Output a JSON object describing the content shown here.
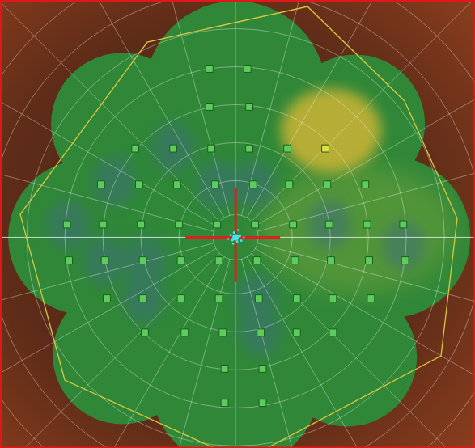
{
  "chart_data": {
    "type": "scatter",
    "marker": "square",
    "tick_labels": false,
    "xlim": [
      -12.4,
      12.6
    ],
    "ylim": [
      -11.1,
      12.5
    ],
    "x": [
      -1.4,
      0.6,
      -1.4,
      0.7,
      -5.3,
      -3.3,
      -1.3,
      0.7,
      2.7,
      4.7,
      -7.1,
      -5.1,
      -3.1,
      -1.1,
      0.9,
      2.8,
      4.8,
      6.8,
      -8.9,
      -7.0,
      -5.0,
      -3.0,
      -1.0,
      1.0,
      3.0,
      4.9,
      6.9,
      8.8,
      -8.8,
      -6.9,
      -4.9,
      -2.9,
      -0.9,
      1.1,
      3.1,
      5.0,
      7.0,
      8.9,
      -6.8,
      -4.9,
      -2.9,
      -0.9,
      1.2,
      3.2,
      5.1,
      7.1,
      -4.8,
      -2.7,
      -0.7,
      1.3,
      3.2,
      5.1,
      -0.6,
      1.4,
      -0.6,
      1.4
    ],
    "y": [
      8.9,
      8.9,
      6.9,
      6.9,
      4.7,
      4.7,
      4.7,
      4.7,
      4.7,
      4.7,
      2.8,
      2.8,
      2.8,
      2.8,
      2.8,
      2.8,
      2.8,
      2.8,
      0.7,
      0.7,
      0.7,
      0.7,
      0.7,
      0.7,
      0.7,
      0.7,
      0.7,
      0.7,
      -1.2,
      -1.2,
      -1.2,
      -1.2,
      -1.2,
      -1.2,
      -1.2,
      -1.2,
      -1.2,
      -1.2,
      -3.2,
      -3.2,
      -3.2,
      -3.2,
      -3.2,
      -3.2,
      -3.2,
      -3.2,
      -5.0,
      -5.0,
      -5.0,
      -5.0,
      -5.0,
      -5.0,
      -6.9,
      -6.9,
      -8.7,
      -8.7
    ],
    "colors": [
      "#5ccc5c",
      "#5ccc5c",
      "#5ccc5c",
      "#5ccc5c",
      "#5ccc5c",
      "#5ccc5c",
      "#5ccc5c",
      "#5ccc5c",
      "#5ccc5c",
      "#e6dc3c",
      "#5ccc5c",
      "#5ccc5c",
      "#5ccc5c",
      "#5ccc5c",
      "#5ccc5c",
      "#5ccc5c",
      "#5ccc5c",
      "#5ccc5c",
      "#5ccc5c",
      "#5ccc5c",
      "#5ccc5c",
      "#5ccc5c",
      "#5ccc5c",
      "#5ccc5c",
      "#5ccc5c",
      "#5ccc5c",
      "#5ccc5c",
      "#5ccc5c",
      "#5ccc5c",
      "#5ccc5c",
      "#5ccc5c",
      "#5ccc5c",
      "#5ccc5c",
      "#5ccc5c",
      "#5ccc5c",
      "#5ccc5c",
      "#5ccc5c",
      "#5ccc5c",
      "#5ccc5c",
      "#5ccc5c",
      "#5ccc5c",
      "#5ccc5c",
      "#5ccc5c",
      "#5ccc5c",
      "#5ccc5c",
      "#5ccc5c",
      "#5ccc5c",
      "#5ccc5c",
      "#5ccc5c",
      "#5ccc5c",
      "#5ccc5c",
      "#5ccc5c",
      "#5ccc5c",
      "#5ccc5c",
      "#5ccc5c",
      "#5ccc5c"
    ]
  }
}
